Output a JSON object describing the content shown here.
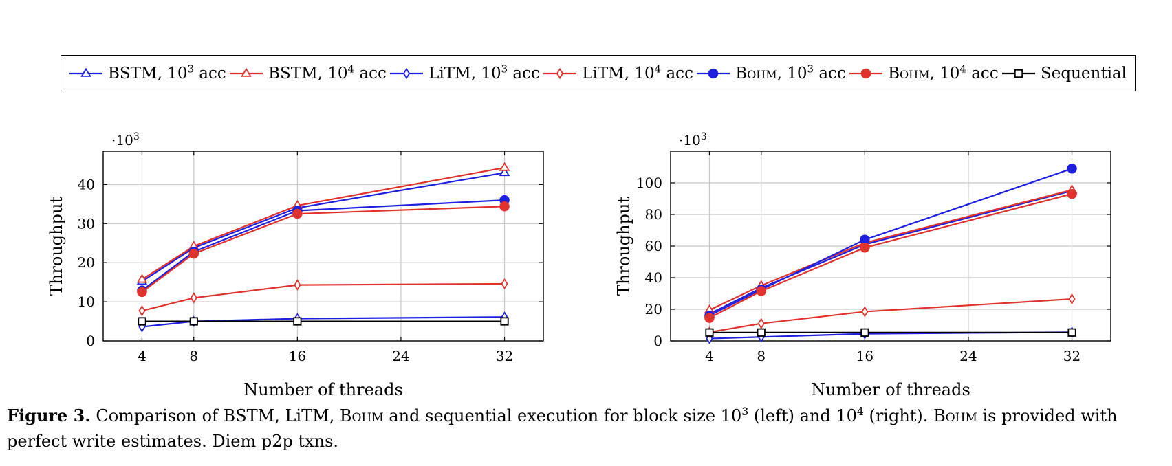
{
  "legend": {
    "entries": [
      {
        "method": "BSTM",
        "base": "10",
        "exp": "3",
        "suffix": "acc",
        "color": "#1f1fe0",
        "marker": "triangle-open"
      },
      {
        "method": "BSTM",
        "base": "10",
        "exp": "4",
        "suffix": "acc",
        "color": "#e0332e",
        "marker": "triangle-open"
      },
      {
        "method": "LiTM",
        "base": "10",
        "exp": "3",
        "suffix": "acc",
        "color": "#1f1fe0",
        "marker": "diamond-open"
      },
      {
        "method": "LiTM",
        "base": "10",
        "exp": "4",
        "suffix": "acc",
        "color": "#e0332e",
        "marker": "diamond-open"
      },
      {
        "method": "Bohm",
        "base": "10",
        "exp": "3",
        "suffix": "acc",
        "color": "#1f1fe0",
        "marker": "circle-filled",
        "smallcaps": true
      },
      {
        "method": "Bohm",
        "base": "10",
        "exp": "4",
        "suffix": "acc",
        "color": "#e0332e",
        "marker": "circle-filled",
        "smallcaps": true
      },
      {
        "method": "Sequential",
        "base": "",
        "exp": "",
        "suffix": "",
        "color": "#000000",
        "marker": "square-open"
      }
    ]
  },
  "chart_data": [
    {
      "type": "line",
      "xlabel": "Number of threads",
      "ylabel": "Throughput",
      "y_multiplier_base": "·10",
      "y_multiplier_exp": "3",
      "xlim": [
        1,
        35
      ],
      "ylim": [
        0,
        48.5
      ],
      "xticks": [
        4,
        8,
        16,
        24,
        32
      ],
      "yticks": [
        0,
        10,
        20,
        30,
        40
      ],
      "grid": true,
      "x": [
        4,
        8,
        16,
        32
      ],
      "series": [
        {
          "name": "BSTM, 10^3 acc",
          "color": "#1f1fe0",
          "marker": "triangle-open",
          "values": [
            15.2,
            23.8,
            34.0,
            43.0
          ]
        },
        {
          "name": "BSTM, 10^4 acc",
          "color": "#e0332e",
          "marker": "triangle-open",
          "values": [
            15.7,
            24.2,
            34.6,
            44.3
          ]
        },
        {
          "name": "LiTM, 10^3 acc",
          "color": "#1f1fe0",
          "marker": "diamond-open",
          "values": [
            3.6,
            5.0,
            5.7,
            6.1
          ]
        },
        {
          "name": "LiTM, 10^4 acc",
          "color": "#e0332e",
          "marker": "diamond-open",
          "values": [
            7.7,
            11.0,
            14.3,
            14.6
          ]
        },
        {
          "name": "Bohm, 10^3 acc",
          "color": "#1f1fe0",
          "marker": "circle-filled",
          "values": [
            12.9,
            22.8,
            33.3,
            36.0
          ]
        },
        {
          "name": "Bohm, 10^4 acc",
          "color": "#e0332e",
          "marker": "circle-filled",
          "values": [
            12.5,
            22.3,
            32.5,
            34.4
          ]
        },
        {
          "name": "Sequential",
          "color": "#000000",
          "marker": "square-open",
          "values": [
            5.0,
            5.0,
            5.0,
            5.0
          ]
        }
      ]
    },
    {
      "type": "line",
      "xlabel": "Number of threads",
      "ylabel": "Throughput",
      "y_multiplier_base": "·10",
      "y_multiplier_exp": "3",
      "xlim": [
        1,
        35
      ],
      "ylim": [
        0,
        120
      ],
      "xticks": [
        4,
        8,
        16,
        24,
        32
      ],
      "yticks": [
        0,
        20,
        40,
        60,
        80,
        100
      ],
      "grid": true,
      "x": [
        4,
        8,
        16,
        32
      ],
      "series": [
        {
          "name": "BSTM, 10^3 acc",
          "color": "#1f1fe0",
          "marker": "triangle-open",
          "values": [
            17.0,
            33.5,
            61.0,
            95.0
          ]
        },
        {
          "name": "BSTM, 10^4 acc",
          "color": "#e0332e",
          "marker": "triangle-open",
          "values": [
            19.5,
            35.0,
            62.0,
            95.5
          ]
        },
        {
          "name": "LiTM, 10^3 acc",
          "color": "#1f1fe0",
          "marker": "diamond-open",
          "values": [
            1.5,
            2.5,
            4.5,
            5.5
          ]
        },
        {
          "name": "LiTM, 10^4 acc",
          "color": "#e0332e",
          "marker": "diamond-open",
          "values": [
            5.5,
            11.0,
            18.5,
            26.5
          ]
        },
        {
          "name": "Bohm, 10^3 acc",
          "color": "#1f1fe0",
          "marker": "circle-filled",
          "values": [
            16.0,
            32.5,
            64.0,
            109.0
          ]
        },
        {
          "name": "Bohm, 10^4 acc",
          "color": "#e0332e",
          "marker": "circle-filled",
          "values": [
            14.5,
            31.5,
            59.0,
            93.0
          ]
        },
        {
          "name": "Sequential",
          "color": "#000000",
          "marker": "square-open",
          "values": [
            5.3,
            5.3,
            5.3,
            5.3
          ]
        }
      ]
    }
  ],
  "caption": {
    "label": "Figure 3.",
    "t1": " Comparison of BSTM, LiTM, ",
    "bohm": "Bohm",
    "t2": " and sequential execution for block size 10",
    "e1": "3",
    "t3": " (left) and 10",
    "e2": "4",
    "t4": " (right). ",
    "t5": " is provided with perfect write estimates. Diem p2p txns."
  }
}
